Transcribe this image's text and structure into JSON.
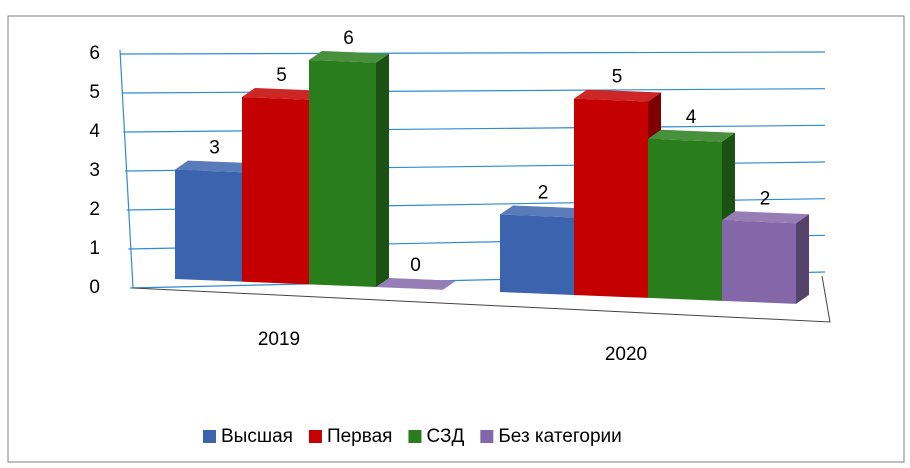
{
  "chart_data": {
    "type": "bar3d",
    "categories": [
      "2019",
      "2020"
    ],
    "series": [
      {
        "name": "Высшая",
        "color": "#3c64ae",
        "values": [
          3,
          2
        ]
      },
      {
        "name": "Первая",
        "color": "#c40000",
        "values": [
          5,
          5
        ]
      },
      {
        "name": "СЗД",
        "color": "#2a7d1c",
        "values": [
          6,
          4
        ]
      },
      {
        "name": "Без категории",
        "color": "#8467a8",
        "values": [
          0,
          2
        ]
      }
    ],
    "ylim": [
      0,
      6
    ],
    "yticks": [
      0,
      1,
      2,
      3,
      4,
      5,
      6
    ],
    "grid": true,
    "legend": "bottom"
  }
}
